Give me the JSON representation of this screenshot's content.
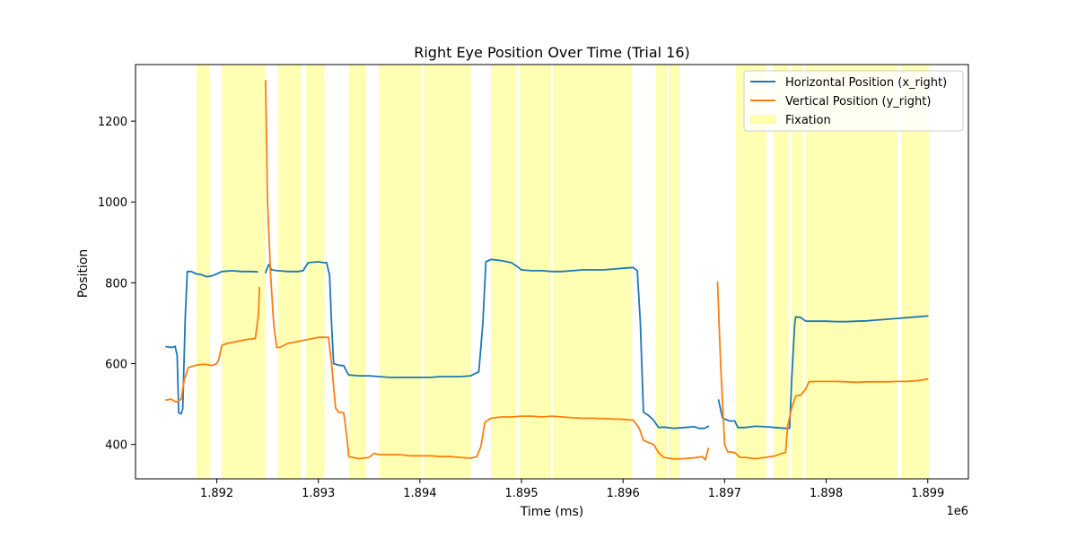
{
  "chart_data": {
    "type": "line",
    "title": "Right Eye Position Over Time (Trial 16)",
    "xlabel": "Time (ms)",
    "ylabel": "Position",
    "x_offset_label": "1e6",
    "xlim": [
      1891200,
      1899400
    ],
    "ylim": [
      315,
      1340
    ],
    "x_ticks": [
      1892000,
      1893000,
      1894000,
      1895000,
      1896000,
      1897000,
      1898000,
      1899000
    ],
    "x_tick_labels": [
      "1.892",
      "1.893",
      "1.894",
      "1.895",
      "1.896",
      "1.897",
      "1.898",
      "1.899"
    ],
    "y_ticks": [
      400,
      600,
      800,
      1000,
      1200
    ],
    "y_tick_labels": [
      "400",
      "600",
      "800",
      "1000",
      "1200"
    ],
    "grid": false,
    "legend_position": "top-right",
    "fixation_color": "#ffff99",
    "fixations": [
      [
        1891800,
        1891930
      ],
      [
        1892050,
        1892480
      ],
      [
        1892600,
        1892830
      ],
      [
        1892880,
        1893060
      ],
      [
        1893300,
        1893470
      ],
      [
        1893600,
        1894010
      ],
      [
        1894040,
        1894500
      ],
      [
        1894700,
        1894950
      ],
      [
        1894980,
        1895290
      ],
      [
        1895310,
        1896090
      ],
      [
        1896320,
        1896430
      ],
      [
        1896450,
        1896560
      ],
      [
        1897110,
        1897410
      ],
      [
        1897480,
        1897630
      ],
      [
        1897660,
        1897770
      ],
      [
        1897800,
        1898700
      ],
      [
        1898740,
        1899010
      ]
    ],
    "series": [
      {
        "name": "Horizontal Position (x_right)",
        "color": "#1f77b4",
        "segments": [
          [
            [
              1891500,
              642
            ],
            [
              1891560,
              640
            ],
            [
              1891590,
              643
            ],
            [
              1891610,
              620
            ],
            [
              1891625,
              478
            ],
            [
              1891650,
              476
            ],
            [
              1891665,
              488
            ],
            [
              1891690,
              720
            ],
            [
              1891710,
              828
            ],
            [
              1891750,
              828
            ],
            [
              1891800,
              822
            ],
            [
              1891850,
              820
            ],
            [
              1891900,
              815
            ],
            [
              1891950,
              817
            ],
            [
              1892000,
              822
            ],
            [
              1892050,
              828
            ],
            [
              1892150,
              830
            ],
            [
              1892250,
              828
            ],
            [
              1892350,
              828
            ],
            [
              1892400,
              827
            ]
          ],
          [
            [
              1892480,
              825
            ],
            [
              1892510,
              845
            ],
            [
              1892540,
              832
            ],
            [
              1892600,
              830
            ],
            [
              1892700,
              828
            ],
            [
              1892800,
              828
            ],
            [
              1892850,
              830
            ],
            [
              1892900,
              850
            ],
            [
              1893000,
              852
            ],
            [
              1893050,
              850
            ],
            [
              1893080,
              850
            ],
            [
              1893110,
              820
            ],
            [
              1893130,
              700
            ],
            [
              1893150,
              600
            ],
            [
              1893200,
              596
            ],
            [
              1893250,
              595
            ],
            [
              1893280,
              580
            ],
            [
              1893300,
              572
            ],
            [
              1893400,
              570
            ],
            [
              1893500,
              570
            ],
            [
              1893600,
              568
            ],
            [
              1893700,
              566
            ],
            [
              1893800,
              566
            ],
            [
              1893900,
              566
            ],
            [
              1894000,
              566
            ],
            [
              1894100,
              566
            ],
            [
              1894200,
              568
            ],
            [
              1894300,
              568
            ],
            [
              1894400,
              568
            ],
            [
              1894500,
              570
            ],
            [
              1894580,
              580
            ],
            [
              1894620,
              700
            ],
            [
              1894650,
              852
            ],
            [
              1894700,
              858
            ],
            [
              1894800,
              855
            ],
            [
              1894900,
              850
            ],
            [
              1894960,
              840
            ],
            [
              1895000,
              832
            ],
            [
              1895100,
              830
            ],
            [
              1895200,
              830
            ],
            [
              1895300,
              828
            ],
            [
              1895400,
              828
            ],
            [
              1895500,
              830
            ],
            [
              1895600,
              832
            ],
            [
              1895700,
              832
            ],
            [
              1895800,
              832
            ],
            [
              1895900,
              834
            ],
            [
              1896000,
              836
            ],
            [
              1896100,
              838
            ],
            [
              1896140,
              830
            ],
            [
              1896170,
              700
            ],
            [
              1896200,
              480
            ],
            [
              1896250,
              472
            ],
            [
              1896300,
              460
            ],
            [
              1896350,
              442
            ],
            [
              1896400,
              443
            ],
            [
              1896500,
              440
            ],
            [
              1896600,
              442
            ],
            [
              1896700,
              444
            ],
            [
              1896750,
              440
            ],
            [
              1896800,
              440
            ],
            [
              1896840,
              445
            ]
          ],
          [
            [
              1896940,
              510
            ],
            [
              1896980,
              465
            ],
            [
              1897050,
              458
            ],
            [
              1897100,
              458
            ],
            [
              1897130,
              442
            ],
            [
              1897200,
              442
            ],
            [
              1897300,
              445
            ],
            [
              1897400,
              444
            ],
            [
              1897500,
              442
            ],
            [
              1897600,
              440
            ],
            [
              1897640,
              440
            ],
            [
              1897660,
              560
            ],
            [
              1897690,
              700
            ],
            [
              1897700,
              716
            ],
            [
              1897750,
              714
            ],
            [
              1897800,
              705
            ],
            [
              1897900,
              705
            ],
            [
              1898000,
              705
            ],
            [
              1898100,
              704
            ],
            [
              1898200,
              704
            ],
            [
              1898300,
              705
            ],
            [
              1898400,
              706
            ],
            [
              1898500,
              708
            ],
            [
              1898600,
              710
            ],
            [
              1898700,
              712
            ],
            [
              1898800,
              714
            ],
            [
              1898900,
              716
            ],
            [
              1899000,
              718
            ]
          ]
        ]
      },
      {
        "name": "Vertical Position (y_right)",
        "color": "#ff7f0e",
        "segments": [
          [
            [
              1891500,
              510
            ],
            [
              1891550,
              512
            ],
            [
              1891600,
              505
            ],
            [
              1891650,
              512
            ],
            [
              1891680,
              560
            ],
            [
              1891720,
              590
            ],
            [
              1891780,
              595
            ],
            [
              1891850,
              598
            ],
            [
              1891900,
              598
            ],
            [
              1891950,
              595
            ],
            [
              1892000,
              600
            ],
            [
              1892020,
              610
            ],
            [
              1892050,
              645
            ],
            [
              1892100,
              650
            ],
            [
              1892200,
              655
            ],
            [
              1892300,
              660
            ],
            [
              1892380,
              662
            ],
            [
              1892410,
              720
            ],
            [
              1892420,
              788
            ]
          ],
          [
            [
              1892480,
              1300
            ],
            [
              1892500,
              1000
            ],
            [
              1892530,
              820
            ],
            [
              1892560,
              700
            ],
            [
              1892590,
              640
            ],
            [
              1892620,
              640
            ],
            [
              1892700,
              650
            ],
            [
              1892800,
              655
            ],
            [
              1892900,
              660
            ],
            [
              1893000,
              665
            ],
            [
              1893100,
              665
            ],
            [
              1893130,
              600
            ],
            [
              1893170,
              490
            ],
            [
              1893200,
              480
            ],
            [
              1893250,
              478
            ],
            [
              1893280,
              420
            ],
            [
              1893300,
              370
            ],
            [
              1893400,
              365
            ],
            [
              1893500,
              368
            ],
            [
              1893550,
              378
            ],
            [
              1893600,
              375
            ],
            [
              1893700,
              375
            ],
            [
              1893800,
              375
            ],
            [
              1893900,
              372
            ],
            [
              1894000,
              372
            ],
            [
              1894100,
              372
            ],
            [
              1894200,
              370
            ],
            [
              1894300,
              370
            ],
            [
              1894400,
              368
            ],
            [
              1894500,
              366
            ],
            [
              1894560,
              370
            ],
            [
              1894600,
              395
            ],
            [
              1894640,
              455
            ],
            [
              1894700,
              465
            ],
            [
              1894800,
              468
            ],
            [
              1894900,
              468
            ],
            [
              1895000,
              470
            ],
            [
              1895100,
              470
            ],
            [
              1895200,
              468
            ],
            [
              1895300,
              470
            ],
            [
              1895400,
              468
            ],
            [
              1895500,
              466
            ],
            [
              1895600,
              465
            ],
            [
              1895700,
              465
            ],
            [
              1895800,
              464
            ],
            [
              1895900,
              463
            ],
            [
              1896000,
              462
            ],
            [
              1896100,
              460
            ],
            [
              1896160,
              440
            ],
            [
              1896200,
              410
            ],
            [
              1896300,
              400
            ],
            [
              1896350,
              380
            ],
            [
              1896400,
              368
            ],
            [
              1896500,
              364
            ],
            [
              1896600,
              365
            ],
            [
              1896700,
              367
            ],
            [
              1896780,
              370
            ],
            [
              1896810,
              362
            ],
            [
              1896840,
              390
            ]
          ],
          [
            [
              1896930,
              802
            ],
            [
              1896960,
              600
            ],
            [
              1897000,
              400
            ],
            [
              1897030,
              382
            ],
            [
              1897100,
              380
            ],
            [
              1897150,
              368
            ],
            [
              1897200,
              368
            ],
            [
              1897300,
              365
            ],
            [
              1897400,
              368
            ],
            [
              1897500,
              372
            ],
            [
              1897560,
              378
            ],
            [
              1897600,
              380
            ],
            [
              1897620,
              445
            ],
            [
              1897660,
              490
            ],
            [
              1897700,
              520
            ],
            [
              1897750,
              522
            ],
            [
              1897800,
              538
            ],
            [
              1897830,
              555
            ],
            [
              1897900,
              556
            ],
            [
              1898000,
              556
            ],
            [
              1898100,
              556
            ],
            [
              1898200,
              555
            ],
            [
              1898300,
              554
            ],
            [
              1898400,
              555
            ],
            [
              1898500,
              555
            ],
            [
              1898600,
              555
            ],
            [
              1898700,
              556
            ],
            [
              1898800,
              556
            ],
            [
              1898900,
              558
            ],
            [
              1899000,
              562
            ]
          ]
        ]
      }
    ],
    "legend": {
      "entries": [
        {
          "label": "Horizontal Position (x_right)",
          "kind": "line",
          "color": "#1f77b4"
        },
        {
          "label": "Vertical Position (y_right)",
          "kind": "line",
          "color": "#ff7f0e"
        },
        {
          "label": "Fixation",
          "kind": "patch",
          "color": "#ffff99"
        }
      ]
    }
  }
}
